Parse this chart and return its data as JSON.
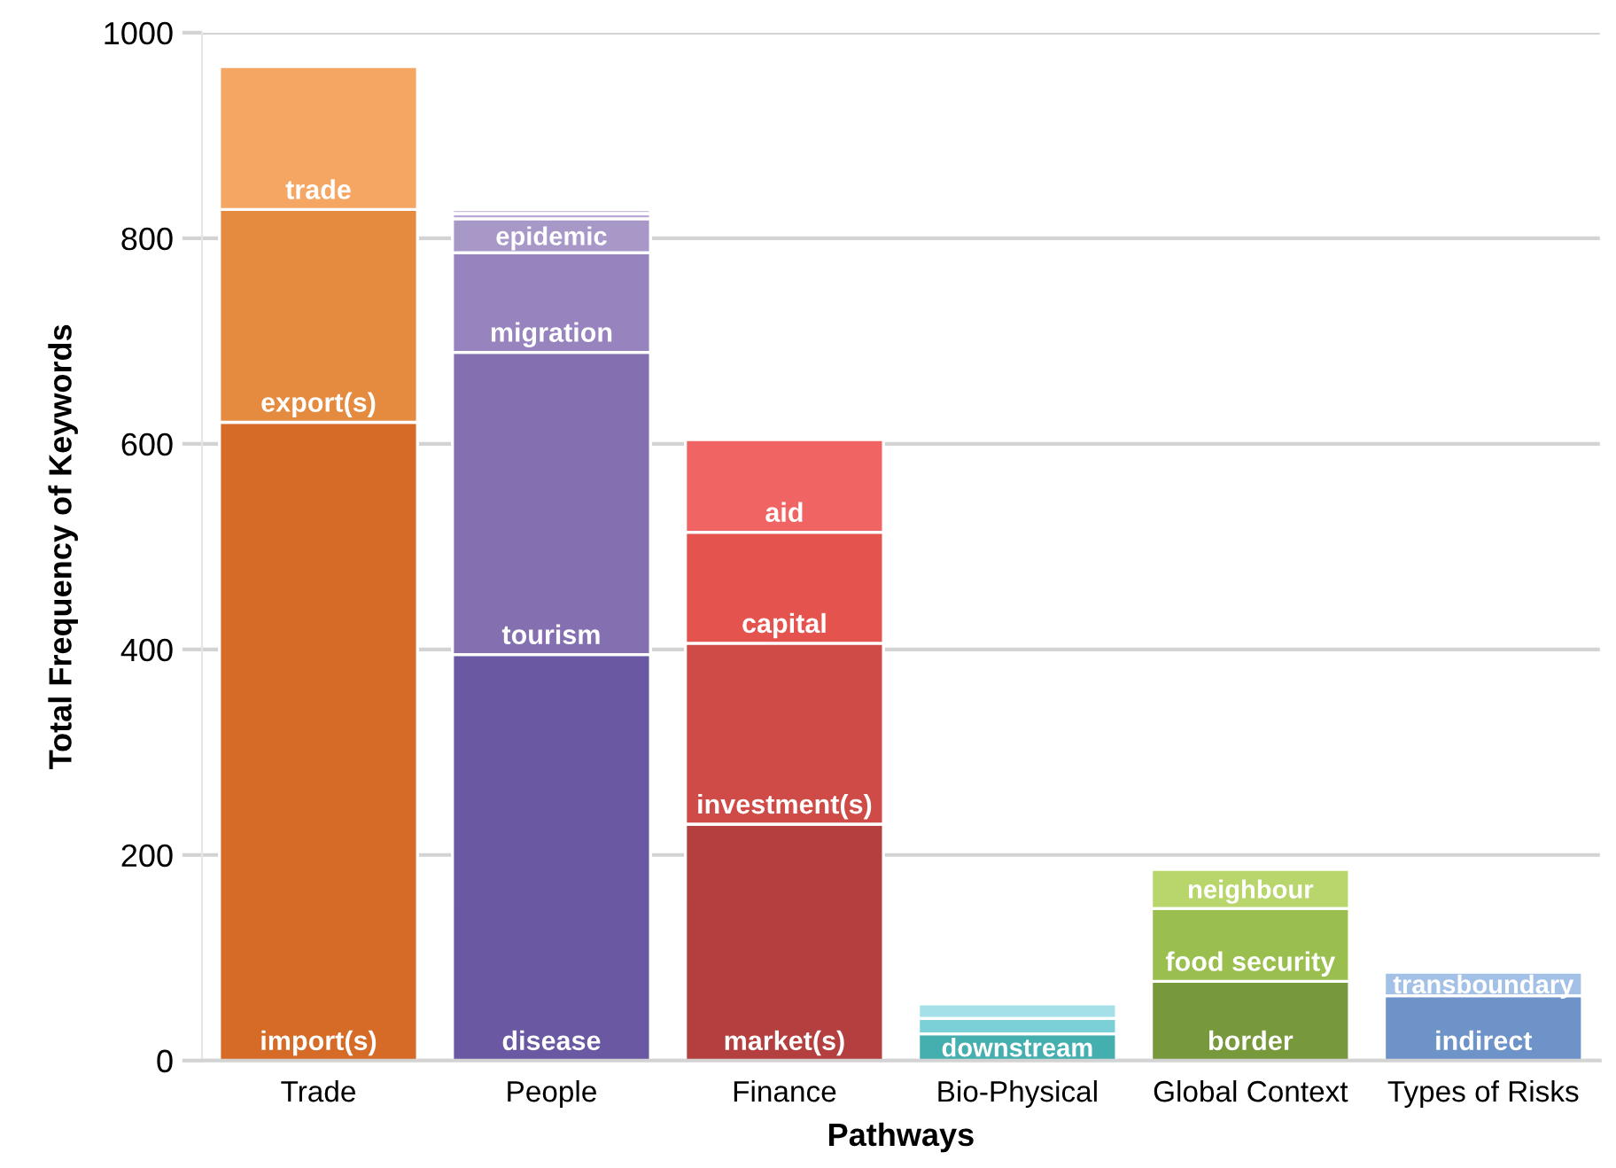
{
  "chart_data": {
    "type": "bar",
    "stacked": true,
    "xlabel": "Pathways",
    "ylabel": "Total Frequency of Keywords",
    "categories": [
      "Trade",
      "People",
      "Finance",
      "Bio-Physical",
      "Global Context",
      "Types of Risks"
    ],
    "series": [
      {
        "values": [
          621,
          395,
          230,
          26,
          77,
          63
        ],
        "colors": [
          "#d56b27",
          "#6a58a3",
          "#b43f3f",
          "#45afb0",
          "#77993c",
          "#6d93c9"
        ],
        "value_labels": [
          "import(s)",
          "disease",
          "market(s)",
          "downstream",
          "border",
          "indirect"
        ]
      },
      {
        "values": [
          207,
          294,
          176,
          15,
          71,
          23
        ],
        "colors": [
          "#e58b40",
          "#8470b0",
          "#cf4b48",
          "#7ad0d6",
          "#9abf4e",
          "#a3c0e6"
        ],
        "value_labels": [
          "export(s)",
          "tourism",
          "investment(s)",
          null,
          "food security",
          "transboundary"
        ]
      },
      {
        "values": [
          139,
          97,
          108,
          14,
          38,
          null
        ],
        "colors": [
          "#f4a662",
          "#9783bd",
          "#e5534f",
          "#a5dfe8",
          "#b9d66d",
          null
        ],
        "value_labels": [
          "trade",
          "migration",
          "capital",
          null,
          "neighbour",
          null
        ]
      },
      {
        "values": [
          null,
          33,
          90,
          null,
          null,
          null
        ],
        "colors": [
          null,
          "#a898c8",
          "#f06463",
          null,
          null,
          null
        ],
        "value_labels": [
          null,
          "epidemic",
          "aid",
          null,
          null,
          null
        ]
      },
      {
        "values": [
          null,
          5,
          null,
          null,
          null,
          null
        ],
        "colors": [
          null,
          "#b9a9d6",
          null,
          null,
          null,
          null
        ]
      },
      {
        "values": [
          null,
          4,
          null,
          null,
          null,
          null
        ],
        "colors": [
          null,
          "#cbbfe2",
          null,
          null,
          null,
          null
        ]
      }
    ],
    "ylim": [
      0,
      1000
    ],
    "yticks": [
      0,
      200,
      400,
      600,
      800,
      1000
    ],
    "grid": "y"
  }
}
